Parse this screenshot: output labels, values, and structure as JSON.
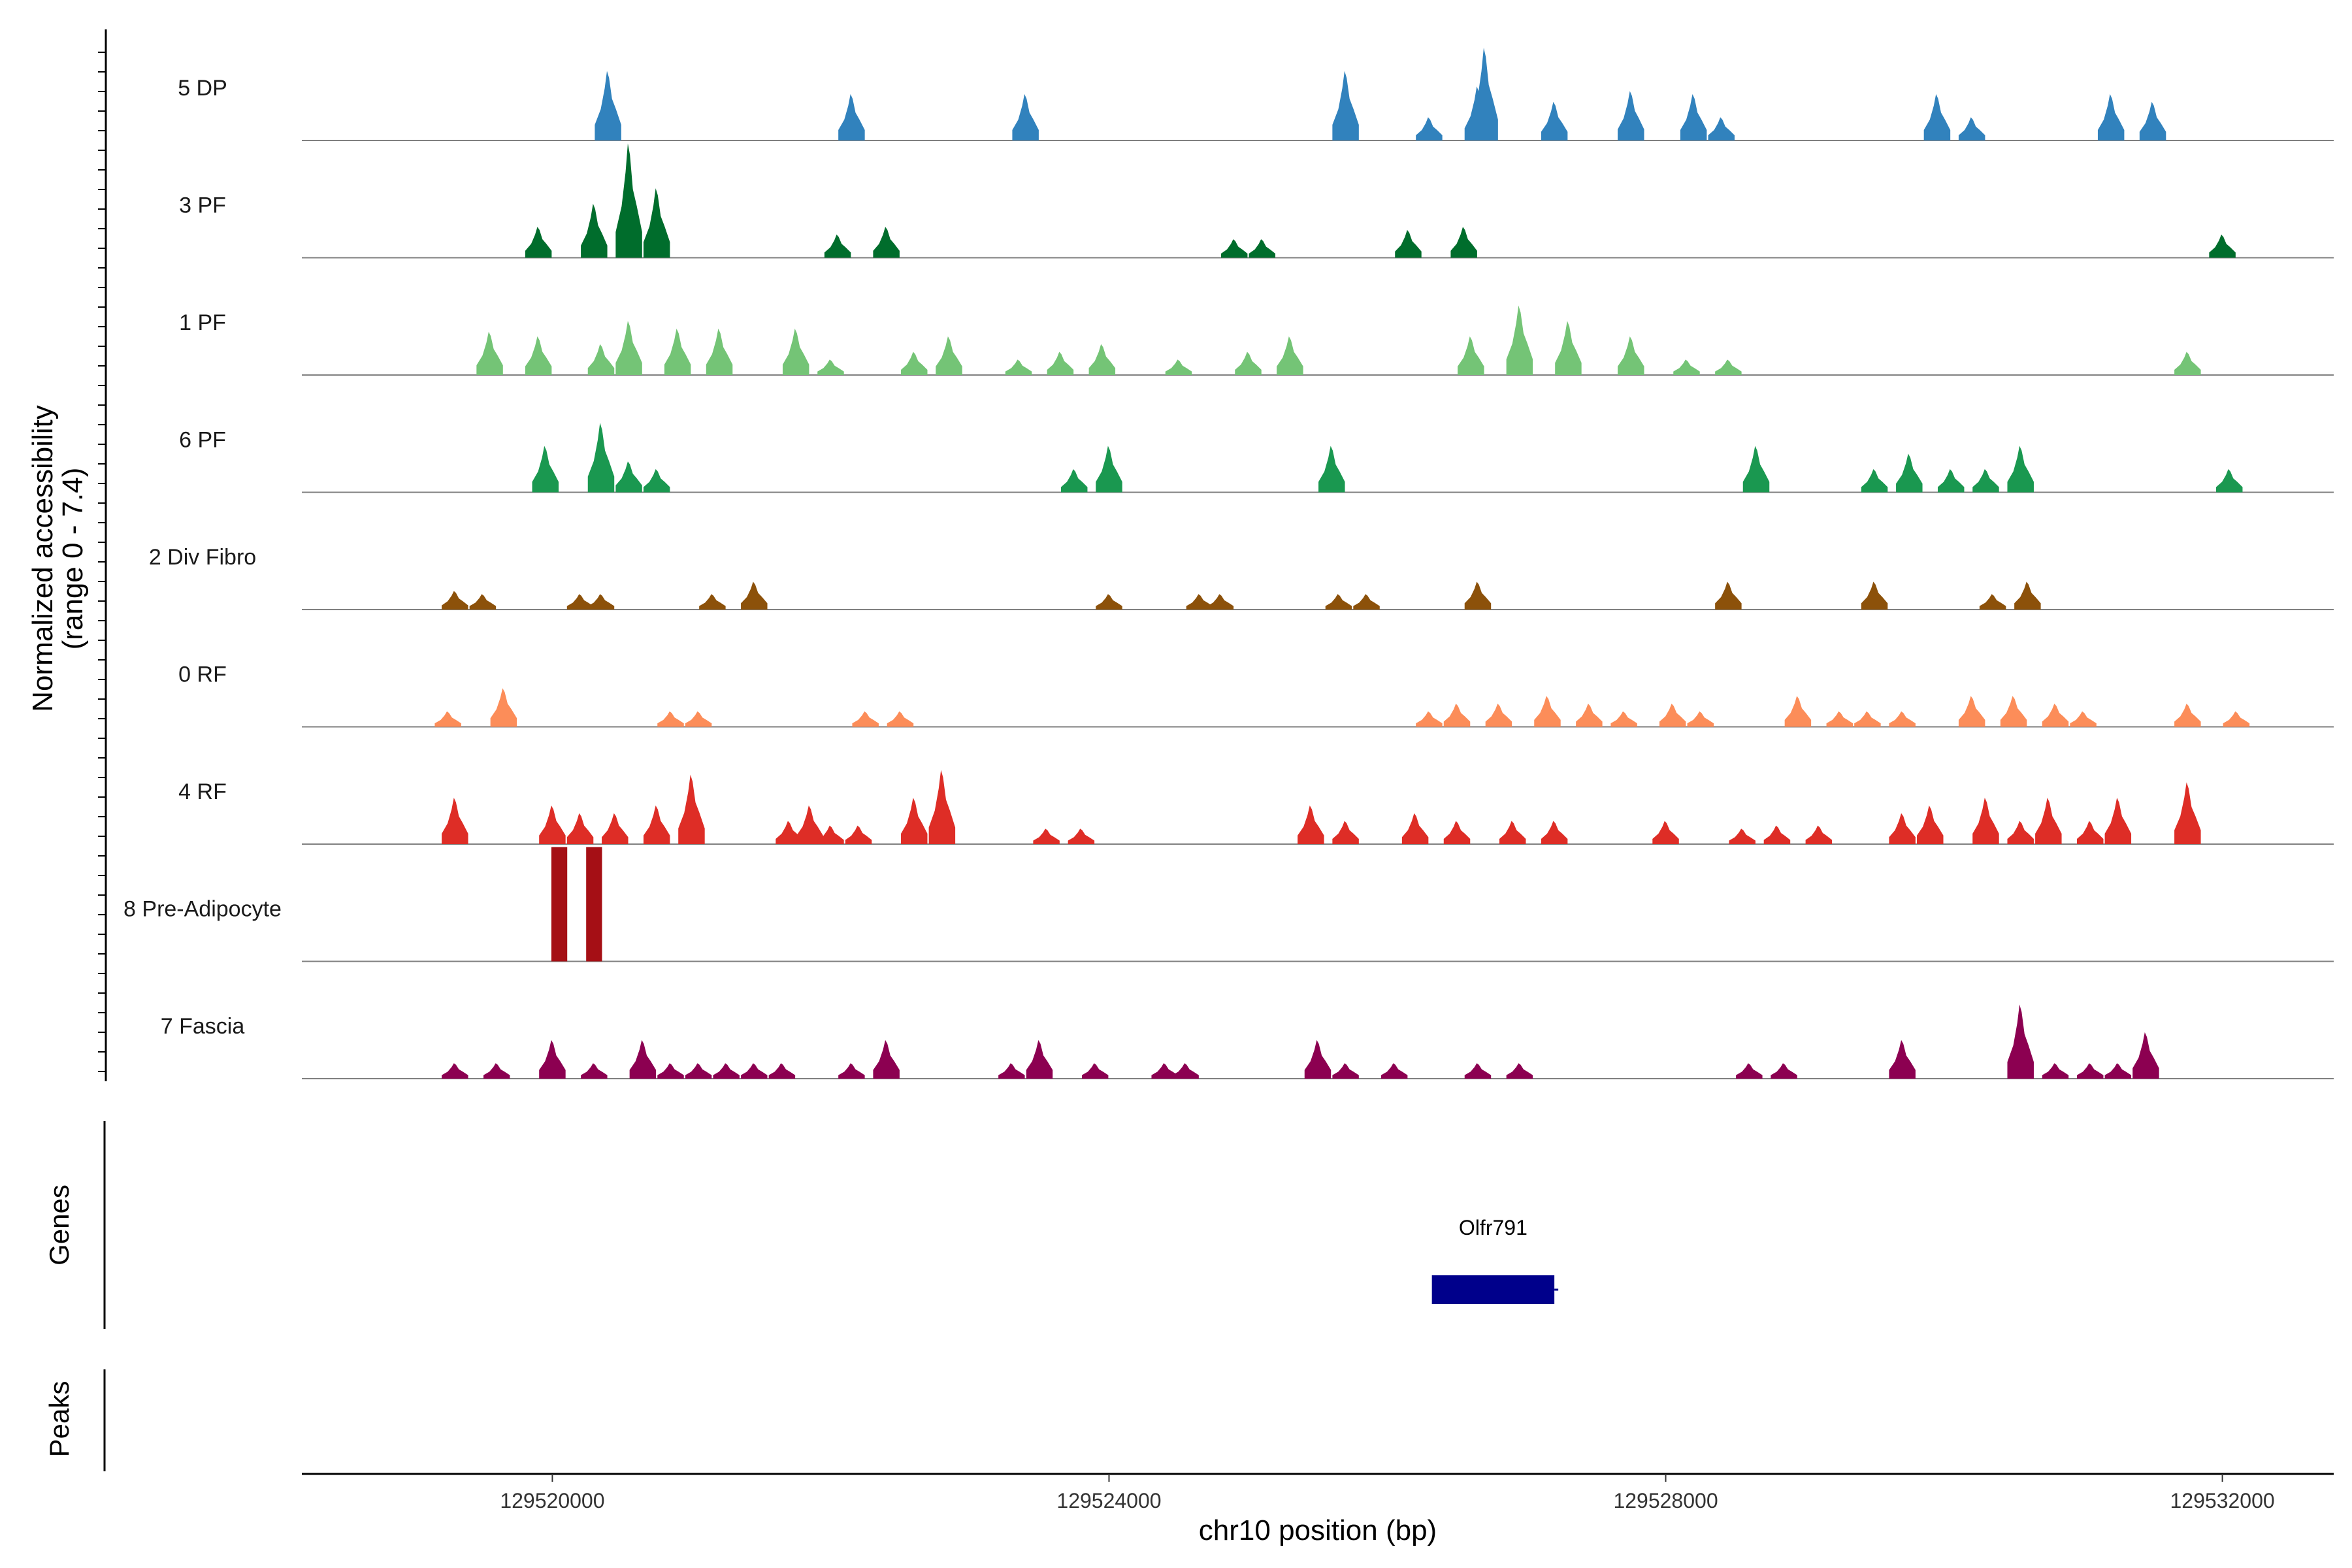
{
  "chart_data": {
    "type": "area",
    "title": "",
    "ylabel": "Normalized accessibility",
    "ylabel_range": "(range 0 - 7.4)",
    "y_range_max": 7.4,
    "xlabel": "chr10 position (bp)",
    "xlim": [
      129518200,
      129532800
    ],
    "x_ticks": [
      129520000,
      129524000,
      129528000,
      129532000
    ],
    "x_tick_labels": [
      "129520000",
      "129524000",
      "129528000",
      "129532000"
    ],
    "panel_labels": {
      "genes": "Genes",
      "peaks": "Peaks"
    },
    "genes": [
      {
        "name": "Olfr791",
        "start": 129526320,
        "end": 129527200,
        "strand": "+"
      }
    ],
    "peaks": [],
    "tracks": [
      {
        "name": "5 DP",
        "color": "#3182bd",
        "signal": [
          [
            129520400,
            4.5
          ],
          [
            129522150,
            3.0
          ],
          [
            129523400,
            3.0
          ],
          [
            129525700,
            4.5
          ],
          [
            129526300,
            1.5
          ],
          [
            129526650,
            3.5
          ],
          [
            129526700,
            6.0
          ],
          [
            129527200,
            2.5
          ],
          [
            129527750,
            3.2
          ],
          [
            129528200,
            3.0
          ],
          [
            129528400,
            1.5
          ],
          [
            129529950,
            3.0
          ],
          [
            129530200,
            1.5
          ],
          [
            129531200,
            3.0
          ],
          [
            129531500,
            2.5
          ]
        ]
      },
      {
        "name": "3 PF",
        "color": "#006d2c",
        "signal": [
          [
            129519900,
            2.0
          ],
          [
            129520300,
            3.5
          ],
          [
            129520550,
            7.4
          ],
          [
            129520750,
            4.5
          ],
          [
            129522050,
            1.5
          ],
          [
            129522400,
            2.0
          ],
          [
            129524900,
            1.2
          ],
          [
            129525100,
            1.2
          ],
          [
            129526150,
            1.8
          ],
          [
            129526550,
            2.0
          ],
          [
            129532000,
            1.5
          ]
        ]
      },
      {
        "name": "1 PF",
        "color": "#74c476",
        "signal": [
          [
            129519550,
            2.8
          ],
          [
            129519900,
            2.5
          ],
          [
            129520350,
            2.0
          ],
          [
            129520550,
            3.5
          ],
          [
            129520900,
            3.0
          ],
          [
            129521200,
            3.0
          ],
          [
            129521750,
            3.0
          ],
          [
            129522000,
            1.0
          ],
          [
            129522600,
            1.5
          ],
          [
            129522850,
            2.5
          ],
          [
            129523350,
            1.0
          ],
          [
            129523650,
            1.5
          ],
          [
            129523950,
            2.0
          ],
          [
            129524500,
            1.0
          ],
          [
            129525000,
            1.5
          ],
          [
            129525300,
            2.5
          ],
          [
            129526600,
            2.5
          ],
          [
            129526950,
            4.5
          ],
          [
            129527300,
            3.5
          ],
          [
            129527750,
            2.5
          ],
          [
            129528150,
            1.0
          ],
          [
            129528450,
            1.0
          ],
          [
            129531750,
            1.5
          ]
        ]
      },
      {
        "name": "6 PF",
        "color": "#1a9850",
        "signal": [
          [
            129519950,
            3.0
          ],
          [
            129520350,
            4.5
          ],
          [
            129520550,
            2.0
          ],
          [
            129520750,
            1.5
          ],
          [
            129523750,
            1.5
          ],
          [
            129524000,
            3.0
          ],
          [
            129525600,
            3.0
          ],
          [
            129528650,
            3.0
          ],
          [
            129529500,
            1.5
          ],
          [
            129529750,
            2.5
          ],
          [
            129530050,
            1.5
          ],
          [
            129530300,
            1.5
          ],
          [
            129530550,
            3.0
          ],
          [
            129532050,
            1.5
          ]
        ]
      },
      {
        "name": "2 Div Fibro",
        "color": "#8c510a",
        "signal": [
          [
            129519300,
            1.2
          ],
          [
            129519500,
            1.0
          ],
          [
            129520200,
            1.0
          ],
          [
            129520350,
            1.0
          ],
          [
            129521150,
            1.0
          ],
          [
            129521450,
            1.8
          ],
          [
            129524000,
            1.0
          ],
          [
            129524650,
            1.0
          ],
          [
            129524800,
            1.0
          ],
          [
            129525650,
            1.0
          ],
          [
            129525850,
            1.0
          ],
          [
            129526650,
            1.8
          ],
          [
            129528450,
            1.8
          ],
          [
            129529500,
            1.8
          ],
          [
            129530350,
            1.0
          ],
          [
            129530600,
            1.8
          ]
        ]
      },
      {
        "name": "0 RF",
        "color": "#fc8d59",
        "signal": [
          [
            129519250,
            1.0
          ],
          [
            129519650,
            2.5
          ],
          [
            129520850,
            1.0
          ],
          [
            129521050,
            1.0
          ],
          [
            129522250,
            1.0
          ],
          [
            129522500,
            1.0
          ],
          [
            129526300,
            1.0
          ],
          [
            129526500,
            1.5
          ],
          [
            129526800,
            1.5
          ],
          [
            129527150,
            2.0
          ],
          [
            129527450,
            1.5
          ],
          [
            129527700,
            1.0
          ],
          [
            129528050,
            1.5
          ],
          [
            129528250,
            1.0
          ],
          [
            129528950,
            2.0
          ],
          [
            129529250,
            1.0
          ],
          [
            129529450,
            1.0
          ],
          [
            129529700,
            1.0
          ],
          [
            129530200,
            2.0
          ],
          [
            129530500,
            2.0
          ],
          [
            129530800,
            1.5
          ],
          [
            129531000,
            1.0
          ],
          [
            129531750,
            1.5
          ],
          [
            129532100,
            1.0
          ]
        ]
      },
      {
        "name": "4 RF",
        "color": "#de2d26",
        "signal": [
          [
            129519300,
            3.0
          ],
          [
            129520000,
            2.5
          ],
          [
            129520200,
            2.0
          ],
          [
            129520450,
            2.0
          ],
          [
            129520750,
            2.5
          ],
          [
            129521000,
            4.5
          ],
          [
            129521700,
            1.5
          ],
          [
            129521850,
            2.5
          ],
          [
            129522000,
            1.2
          ],
          [
            129522200,
            1.2
          ],
          [
            129522600,
            3.0
          ],
          [
            129522800,
            4.8
          ],
          [
            129523550,
            1.0
          ],
          [
            129523800,
            1.0
          ],
          [
            129525450,
            2.5
          ],
          [
            129525700,
            1.5
          ],
          [
            129526200,
            2.0
          ],
          [
            129526500,
            1.5
          ],
          [
            129526900,
            1.5
          ],
          [
            129527200,
            1.5
          ],
          [
            129528000,
            1.5
          ],
          [
            129528550,
            1.0
          ],
          [
            129528800,
            1.2
          ],
          [
            129529100,
            1.2
          ],
          [
            129529700,
            2.0
          ],
          [
            129529900,
            2.5
          ],
          [
            129530300,
            3.0
          ],
          [
            129530550,
            1.5
          ],
          [
            129530750,
            3.0
          ],
          [
            129531050,
            1.5
          ],
          [
            129531250,
            3.0
          ],
          [
            129531750,
            4.0
          ]
        ]
      },
      {
        "name": "8 Pre-Adipocyte",
        "color": "#a50f15",
        "signal": [
          [
            129520050,
            7.4
          ],
          [
            129520300,
            7.4
          ]
        ]
      },
      {
        "name": "7 Fascia",
        "color": "#8c0051",
        "signal": [
          [
            129519300,
            1.0
          ],
          [
            129519600,
            1.0
          ],
          [
            129520000,
            2.5
          ],
          [
            129520300,
            1.0
          ],
          [
            129520650,
            2.5
          ],
          [
            129520850,
            1.0
          ],
          [
            129521050,
            1.0
          ],
          [
            129521250,
            1.0
          ],
          [
            129521450,
            1.0
          ],
          [
            129521650,
            1.0
          ],
          [
            129522150,
            1.0
          ],
          [
            129522400,
            2.5
          ],
          [
            129523300,
            1.0
          ],
          [
            129523500,
            2.5
          ],
          [
            129523900,
            1.0
          ],
          [
            129524400,
            1.0
          ],
          [
            129524550,
            1.0
          ],
          [
            129525500,
            2.5
          ],
          [
            129525700,
            1.0
          ],
          [
            129526050,
            1.0
          ],
          [
            129526650,
            1.0
          ],
          [
            129526950,
            1.0
          ],
          [
            129528600,
            1.0
          ],
          [
            129528850,
            1.0
          ],
          [
            129529700,
            2.5
          ],
          [
            129530550,
            4.8
          ],
          [
            129530800,
            1.0
          ],
          [
            129531050,
            1.0
          ],
          [
            129531250,
            1.0
          ],
          [
            129531450,
            3.0
          ]
        ]
      }
    ]
  }
}
